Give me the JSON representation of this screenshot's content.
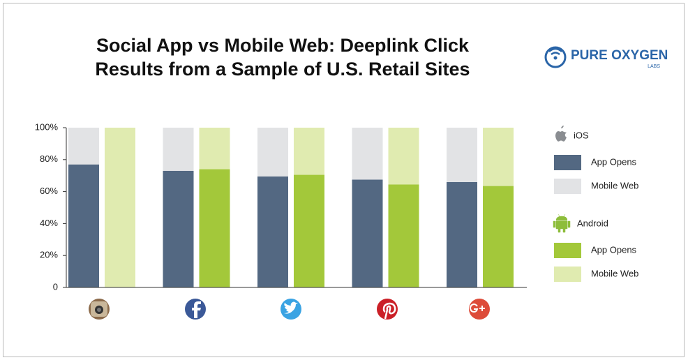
{
  "chart_data": {
    "type": "stacked-bar",
    "title": "Social App vs Mobile Web: Deeplink Click Results from a Sample of U.S. Retail Sites",
    "logo": {
      "name": "PURE OXYGEN",
      "sub": "LABS"
    },
    "categories": [
      null,
      null,
      null,
      null,
      null
    ],
    "groups": [
      "iOS",
      "Android"
    ],
    "series": [
      {
        "name": "App Opens",
        "group": 0,
        "color": "#536882",
        "values": [
          77,
          73,
          69.5,
          67.5,
          66
        ]
      },
      {
        "name": "Mobile Web",
        "group": 0,
        "color": "#e2e3e5",
        "values": [
          23,
          27,
          30.5,
          32.5,
          34
        ]
      },
      {
        "name": "App Opens",
        "group": 1,
        "color": "#a3c83a",
        "values": [
          0,
          74,
          70.5,
          64.5,
          63.5
        ]
      },
      {
        "name": "Mobile Web",
        "group": 1,
        "color": "#e0ebb0",
        "values": [
          100,
          26,
          29.5,
          35.5,
          36.5
        ]
      }
    ],
    "ylim": [
      0,
      100
    ],
    "yticks": [
      0,
      {
        "value": 20,
        "label": "20%"
      },
      {
        "value": 40,
        "label": "40%"
      },
      {
        "value": 60,
        "label": "60%"
      },
      {
        "value": 80,
        "label": "80%"
      },
      {
        "value": 100,
        "label": "100%"
      }
    ]
  }
}
